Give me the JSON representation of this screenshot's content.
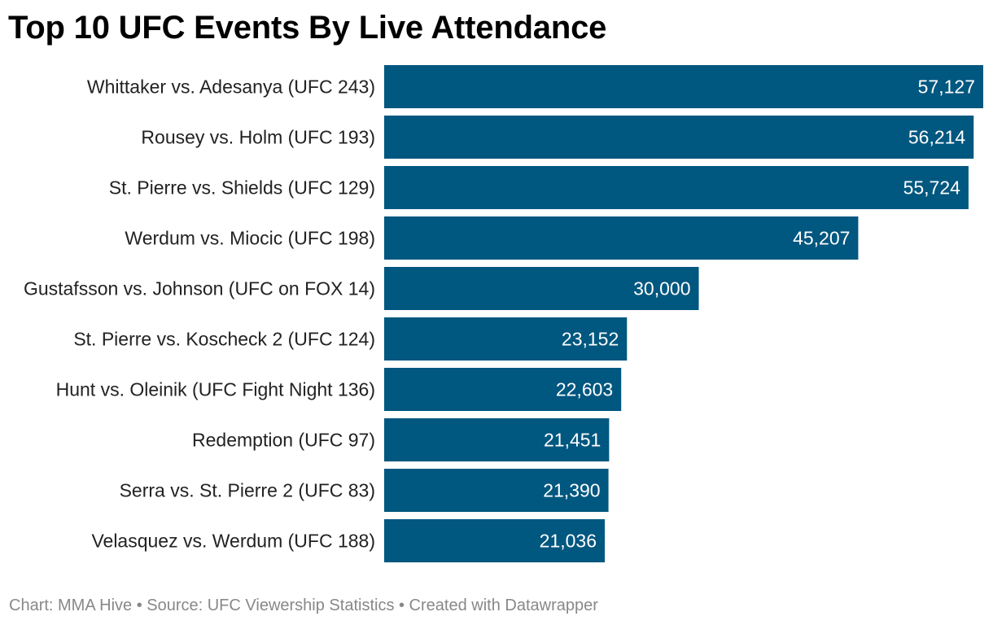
{
  "chart_data": {
    "type": "bar",
    "orientation": "horizontal",
    "title": "Top 10 UFC Events By Live Attendance",
    "categories": [
      "Whittaker vs. Adesanya (UFC 243)",
      "Rousey vs. Holm (UFC 193)",
      "St. Pierre vs. Shields (UFC 129)",
      "Werdum vs. Miocic (UFC 198)",
      "Gustafsson vs. Johnson (UFC on FOX 14)",
      "St. Pierre vs. Koscheck 2 (UFC 124)",
      "Hunt vs. Oleinik (UFC Fight Night 136)",
      "Redemption (UFC 97)",
      "Serra vs. St. Pierre 2 (UFC 83)",
      "Velasquez vs. Werdum (UFC 188)"
    ],
    "values": [
      57127,
      56214,
      55724,
      45207,
      30000,
      23152,
      22603,
      21451,
      21390,
      21036
    ],
    "value_labels": [
      "57,127",
      "56,214",
      "55,724",
      "45,207",
      "30,000",
      "23,152",
      "22,603",
      "21,451",
      "21,390",
      "21,036"
    ],
    "xlim": [
      0,
      57127
    ],
    "grid": false,
    "bar_color": "#00577f",
    "label_color": "#ffffff"
  },
  "footer": {
    "text": "Chart: MMA Hive • Source: UFC Viewership Statistics • Created with Datawrapper"
  }
}
